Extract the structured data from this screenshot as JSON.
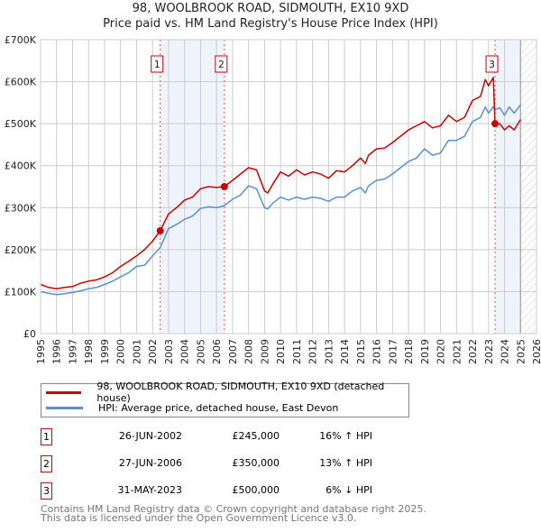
{
  "title_line1": "98, WOOLBROOK ROAD, SIDMOUTH, EX10 9XD",
  "title_line2": "Price paid vs. HM Land Registry's House Price Index (HPI)",
  "legend": [
    {
      "label": "98, WOOLBROOK ROAD, SIDMOUTH, EX10 9XD (detached house)",
      "color": "#cc0000"
    },
    {
      "label": "HPI: Average price, detached house, East Devon",
      "color": "#5b8fd4"
    }
  ],
  "sales": [
    {
      "num": "1",
      "date": "26-JUN-2002",
      "price": "£245,000",
      "hpi": "16% ↑ HPI"
    },
    {
      "num": "2",
      "date": "27-JUN-2006",
      "price": "£350,000",
      "hpi": "13% ↑ HPI"
    },
    {
      "num": "3",
      "date": "31-MAY-2023",
      "price": "£500,000",
      "hpi": "6% ↓ HPI"
    }
  ],
  "footer_line1": "Contains HM Land Registry data © Crown copyright and database right 2025.",
  "footer_line2": "This data is licensed under the Open Government Licence v3.0.",
  "chart_data": {
    "type": "line",
    "xlim": [
      1995,
      2026
    ],
    "ylim": [
      0,
      700000
    ],
    "yticks": [
      0,
      100000,
      200000,
      300000,
      400000,
      500000,
      600000,
      700000
    ],
    "ytick_labels": [
      "£0",
      "£100K",
      "£200K",
      "£300K",
      "£400K",
      "£500K",
      "£600K",
      "£700K"
    ],
    "xticks": [
      1995,
      1996,
      1997,
      1998,
      1999,
      2000,
      2001,
      2002,
      2003,
      2004,
      2005,
      2006,
      2007,
      2008,
      2009,
      2010,
      2011,
      2012,
      2013,
      2014,
      2015,
      2016,
      2017,
      2018,
      2019,
      2020,
      2021,
      2022,
      2023,
      2024,
      2025,
      2026
    ],
    "grid": true,
    "legend_position": "below",
    "shaded_periods": [
      [
        2002.48,
        2006.49
      ],
      [
        2023.41,
        2025.0
      ]
    ],
    "hatched_future_from": 2025.0,
    "sale_points": [
      {
        "label": "1",
        "x": 2002.48,
        "y": 245000
      },
      {
        "label": "2",
        "x": 2006.49,
        "y": 350000
      },
      {
        "label": "3",
        "x": 2023.41,
        "y": 500000
      }
    ],
    "series": [
      {
        "name": "98, WOOLBROOK ROAD, SIDMOUTH, EX10 9XD (detached house)",
        "color": "#cc0000",
        "x": [
          1995,
          1995.5,
          1996,
          1996.5,
          1997,
          1997.5,
          1998,
          1998.5,
          1999,
          1999.5,
          2000,
          2000.5,
          2001,
          2001.5,
          2002,
          2002.48,
          2003,
          2003.5,
          2004,
          2004.5,
          2005,
          2005.5,
          2006,
          2006.49,
          2007,
          2007.5,
          2008,
          2008.5,
          2009,
          2009.2,
          2009.5,
          2010,
          2010.5,
          2011,
          2011.5,
          2012,
          2012.5,
          2013,
          2013.5,
          2014,
          2014.5,
          2015,
          2015.3,
          2015.5,
          2016,
          2016.5,
          2017,
          2017.5,
          2018,
          2018.5,
          2019,
          2019.5,
          2020,
          2020.5,
          2021,
          2021.5,
          2022,
          2022.5,
          2022.8,
          2023.0,
          2023.3,
          2023.41,
          2023.7,
          2024,
          2024.3,
          2024.6,
          2025
        ],
        "y": [
          117000,
          110000,
          107000,
          110000,
          112000,
          120000,
          125000,
          128000,
          135000,
          145000,
          160000,
          172000,
          185000,
          200000,
          220000,
          245000,
          285000,
          300000,
          318000,
          325000,
          345000,
          350000,
          348000,
          350000,
          365000,
          380000,
          395000,
          390000,
          340000,
          335000,
          355000,
          385000,
          375000,
          390000,
          378000,
          385000,
          380000,
          370000,
          388000,
          385000,
          400000,
          418000,
          405000,
          425000,
          440000,
          442000,
          455000,
          470000,
          485000,
          495000,
          505000,
          490000,
          495000,
          520000,
          505000,
          515000,
          555000,
          565000,
          605000,
          590000,
          610000,
          500000,
          500000,
          485000,
          495000,
          485000,
          510000
        ]
      },
      {
        "name": "HPI: Average price, detached house, East Devon",
        "color": "#5b8fd4",
        "x": [
          1995,
          1995.5,
          1996,
          1996.5,
          1997,
          1997.5,
          1998,
          1998.5,
          1999,
          1999.5,
          2000,
          2000.5,
          2001,
          2001.5,
          2002,
          2002.48,
          2003,
          2003.5,
          2004,
          2004.5,
          2005,
          2005.5,
          2006,
          2006.49,
          2007,
          2007.5,
          2008,
          2008.5,
          2009,
          2009.2,
          2009.5,
          2010,
          2010.5,
          2011,
          2011.5,
          2012,
          2012.5,
          2013,
          2013.5,
          2014,
          2014.5,
          2015,
          2015.3,
          2015.5,
          2016,
          2016.5,
          2017,
          2017.5,
          2018,
          2018.5,
          2019,
          2019.5,
          2020,
          2020.5,
          2021,
          2021.5,
          2022,
          2022.5,
          2022.8,
          2023.0,
          2023.3,
          2023.41,
          2023.7,
          2024,
          2024.3,
          2024.6,
          2025
        ],
        "y": [
          100000,
          96000,
          93000,
          95000,
          98000,
          102000,
          107000,
          110000,
          117000,
          125000,
          135000,
          145000,
          160000,
          163000,
          185000,
          205000,
          250000,
          260000,
          272000,
          280000,
          298000,
          302000,
          300000,
          305000,
          320000,
          330000,
          352000,
          345000,
          300000,
          297000,
          310000,
          325000,
          318000,
          325000,
          320000,
          325000,
          322000,
          315000,
          325000,
          325000,
          340000,
          348000,
          335000,
          352000,
          365000,
          368000,
          380000,
          395000,
          410000,
          418000,
          440000,
          425000,
          430000,
          460000,
          460000,
          470000,
          505000,
          515000,
          540000,
          525000,
          540000,
          533000,
          538000,
          520000,
          540000,
          525000,
          545000
        ]
      }
    ]
  }
}
